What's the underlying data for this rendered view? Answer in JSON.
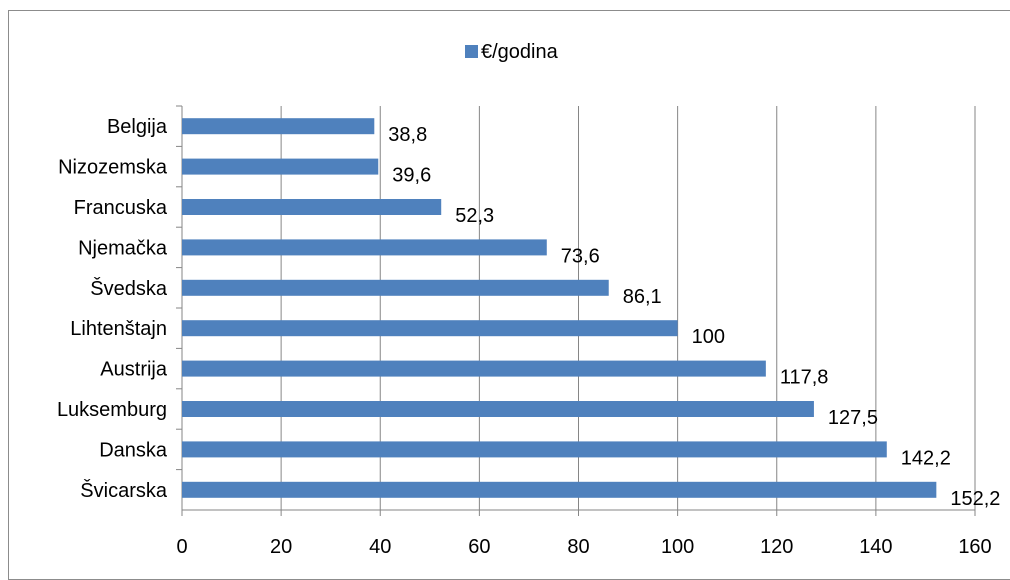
{
  "chart_data": {
    "type": "bar",
    "orientation": "horizontal",
    "title": "",
    "xlabel": "",
    "ylabel": "",
    "legend": {
      "position": "top",
      "entries": [
        "€/godina"
      ]
    },
    "categories": [
      "Belgija",
      "Nizozemska",
      "Francuska",
      "Njemačka",
      "Švedska",
      "Lihtenštajn",
      "Austrija",
      "Luksemburg",
      "Danska",
      "Švicarska"
    ],
    "series": [
      {
        "name": "€/godina",
        "values": [
          38.8,
          39.6,
          52.3,
          73.6,
          86.1,
          100,
          117.8,
          127.5,
          142.2,
          152.2
        ],
        "color": "#4F81BD"
      }
    ],
    "data_labels": [
      "38,8",
      "39,6",
      "52,3",
      "73,6",
      "86,1",
      "100",
      "117,8",
      "127,5",
      "142,2",
      "152,2"
    ],
    "xlim": [
      0,
      160
    ],
    "xticks": [
      "0",
      "20",
      "40",
      "60",
      "80",
      "100",
      "120",
      "140",
      "160"
    ],
    "grid": "vertical major"
  }
}
